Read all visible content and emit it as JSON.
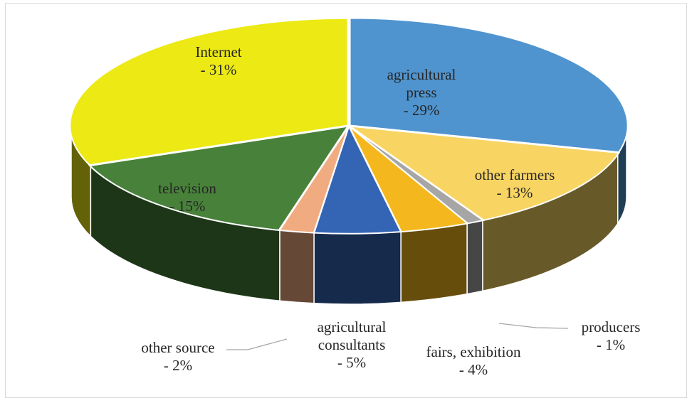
{
  "chart_data": {
    "type": "pie",
    "title": "",
    "categories": [
      "agricultural press",
      "other farmers",
      "producers",
      "fairs, exhibition",
      "agricultural consultants",
      "other source",
      "television",
      "Internet"
    ],
    "values": [
      29,
      13,
      1,
      4,
      5,
      2,
      15,
      31
    ],
    "colors": [
      "#4f94cf",
      "#f8d462",
      "#a6a6a6",
      "#f4b71d",
      "#3465b4",
      "#f0ac80",
      "#48813a",
      "#ece915"
    ],
    "label_lines": [
      [
        "agricultural",
        "press",
        "- 29%"
      ],
      [
        "other farmers",
        "- 13%"
      ],
      [
        "producers",
        "- 1%"
      ],
      [
        "fairs, exhibition",
        "- 4%"
      ],
      [
        "agricultural",
        "consultants",
        "- 5%"
      ],
      [
        "other source",
        "- 2%"
      ],
      [
        "television",
        "- 15%"
      ],
      [
        "Internet",
        "- 31%"
      ]
    ],
    "legend": "none",
    "style": "3d-pie"
  }
}
